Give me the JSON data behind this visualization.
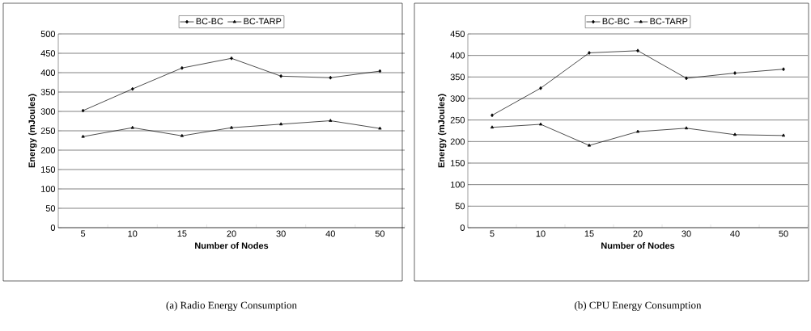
{
  "chart_data": [
    {
      "type": "line",
      "title": "(a) Radio Energy Consumption",
      "xlabel": "Number of Nodes",
      "ylabel": "Energy (mJoules)",
      "categories": [
        "5",
        "10",
        "15",
        "20",
        "30",
        "40",
        "50"
      ],
      "series": [
        {
          "name": "BC-BC",
          "color": "#000000",
          "marker": "diamond",
          "values": [
            302,
            358,
            412,
            437,
            391,
            387,
            404
          ]
        },
        {
          "name": "BC-TARP",
          "color": "#000000",
          "marker": "triangle",
          "values": [
            235,
            258,
            237,
            258,
            267,
            276,
            256
          ]
        }
      ],
      "ylim": [
        0,
        500
      ],
      "yticks": [
        0,
        50,
        100,
        150,
        200,
        250,
        300,
        350,
        400,
        450,
        500
      ],
      "grid": "y",
      "legend": "top",
      "line_style": "solid"
    },
    {
      "type": "line",
      "title": "(b) CPU Energy Consumption",
      "xlabel": "Number of Nodes",
      "ylabel": "Energy (mJoules)",
      "categories": [
        "5",
        "10",
        "15",
        "20",
        "30",
        "40",
        "50"
      ],
      "series": [
        {
          "name": "BC-BC",
          "color": "#000000",
          "marker": "diamond",
          "values": [
            261,
            324,
            406,
            411,
            347,
            359,
            368
          ]
        },
        {
          "name": "BC-TARP",
          "color": "#000000",
          "marker": "triangle",
          "values": [
            233,
            240,
            191,
            223,
            231,
            216,
            214
          ]
        }
      ],
      "ylim": [
        0,
        450
      ],
      "yticks": [
        0,
        50,
        100,
        150,
        200,
        250,
        300,
        350,
        400,
        450
      ],
      "grid": "y",
      "legend": "top",
      "line_style": "solid"
    }
  ]
}
